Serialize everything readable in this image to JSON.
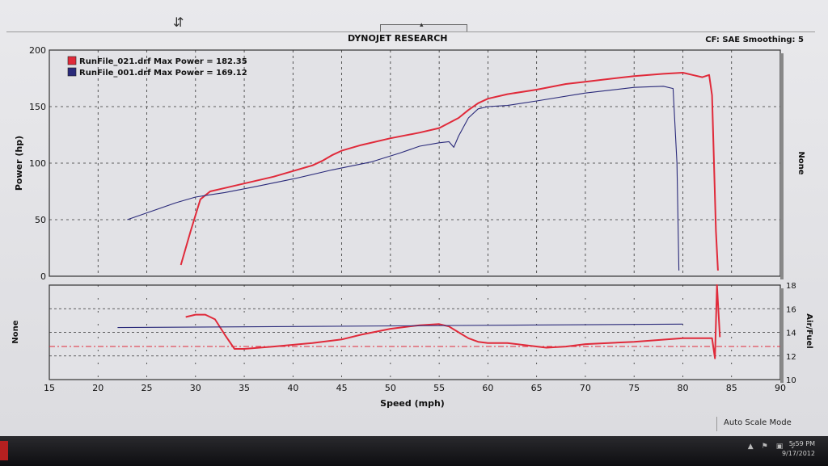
{
  "header": {
    "title": "DYNOJET RESEARCH",
    "cf": "CF: SAE  Smoothing: 5"
  },
  "status": {
    "autoscale": "Auto Scale Mode"
  },
  "taskbar": {
    "time": "5:59 PM",
    "date": "9/17/2012"
  },
  "colors": {
    "run021": "#e02a3a",
    "run001": "#2a2a7a",
    "target": "#e02a3a",
    "grid": "#333333"
  },
  "chart_data": [
    {
      "type": "line",
      "ylabel": "Power (hp)",
      "right_label": "None",
      "xlim": [
        15,
        90
      ],
      "ylim": [
        0,
        200
      ],
      "yticks": [
        "0",
        "50",
        "100",
        "150",
        "200"
      ],
      "legend": [
        "RunFile_021.drf Max Power = 182.35",
        "RunFile_001.drf Max Power = 169.12"
      ],
      "series": [
        {
          "name": "RunFile_021.drf",
          "color": "#e02a3a",
          "x": [
            28.5,
            29.5,
            30.5,
            31.5,
            33,
            35,
            38,
            40,
            42,
            43,
            44,
            45,
            47,
            50,
            53,
            55,
            57,
            58,
            59,
            60,
            62,
            65,
            68,
            70,
            72,
            75,
            78,
            80,
            81,
            82,
            82.7,
            83,
            83.4,
            83.6
          ],
          "values": [
            10,
            40,
            68,
            75,
            78,
            82,
            88,
            93,
            98,
            102,
            107,
            111,
            116,
            122,
            127,
            131,
            140,
            147,
            153,
            157,
            161,
            165,
            170,
            172,
            174,
            177,
            179,
            180,
            178,
            176,
            178,
            160,
            40,
            5
          ]
        },
        {
          "name": "RunFile_001.drf",
          "color": "#2a2a7a",
          "x": [
            23,
            25,
            28,
            30,
            33,
            36,
            40,
            44,
            48,
            51,
            53,
            55,
            56,
            56.5,
            57,
            58,
            59,
            60,
            62,
            65,
            70,
            75,
            78,
            79,
            79.4,
            79.6
          ],
          "values": [
            50,
            56,
            65,
            70,
            74,
            79,
            86,
            94,
            101,
            109,
            115,
            118,
            119,
            114,
            124,
            140,
            148,
            150,
            151,
            155,
            162,
            167,
            168,
            166,
            100,
            5
          ]
        }
      ]
    },
    {
      "type": "line",
      "xlabel": "Speed (mph)",
      "ylabel": "None",
      "right_label": "Air/Fuel",
      "xlim": [
        15,
        90
      ],
      "ylim": [
        10,
        18
      ],
      "xticks": [
        "15",
        "20",
        "25",
        "30",
        "35",
        "40",
        "45",
        "50",
        "55",
        "60",
        "65",
        "70",
        "75",
        "80",
        "85",
        "90"
      ],
      "yticks": [
        "10",
        "12",
        "14",
        "16",
        "18"
      ],
      "target_afr": 12.8,
      "series": [
        {
          "name": "RunFile_021.drf",
          "color": "#e02a3a",
          "x": [
            29,
            30,
            31,
            32,
            33,
            34,
            35,
            38,
            42,
            45,
            47,
            50,
            53,
            55,
            56,
            57,
            58,
            59,
            60,
            62,
            64,
            66,
            68,
            70,
            75,
            80,
            83,
            83.3,
            83.5,
            83.8
          ],
          "values": [
            15.3,
            15.5,
            15.5,
            15.1,
            13.8,
            12.6,
            12.6,
            12.8,
            13.1,
            13.4,
            13.8,
            14.3,
            14.6,
            14.7,
            14.5,
            14.0,
            13.5,
            13.2,
            13.1,
            13.1,
            12.9,
            12.7,
            12.8,
            13.0,
            13.2,
            13.5,
            13.5,
            11.8,
            18,
            13.6
          ]
        },
        {
          "name": "RunFile_001.drf",
          "color": "#2a2a7a",
          "x": [
            22,
            80
          ],
          "values": [
            14.4,
            14.7
          ]
        }
      ]
    }
  ]
}
